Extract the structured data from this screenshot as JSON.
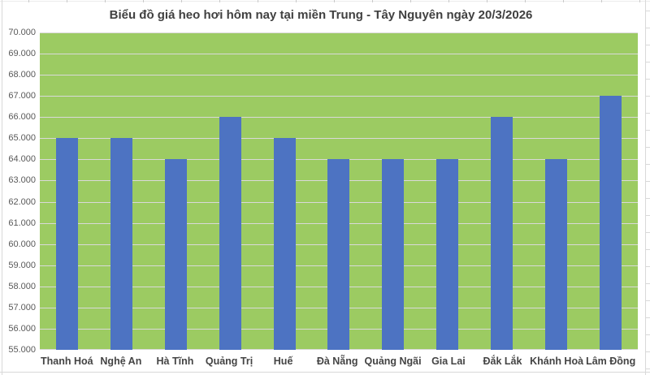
{
  "colors": {
    "plot_background": "#9ccb62",
    "bar": "#4d73c2",
    "gridline": "#d9d9d9",
    "y_label": "#595959",
    "x_label": "#444444",
    "title": "#404040",
    "sheet_line": "#d9d9d9"
  },
  "chart_data": {
    "type": "bar",
    "title": "Biểu đồ giá heo hơi hôm nay tại miền Trung - Tây Nguyên ngày 20/3/2026",
    "categories": [
      "Thanh Hoá",
      "Nghệ An",
      "Hà Tĩnh",
      "Quảng Trị",
      "Huế",
      "Đà Nẵng",
      "Quảng Ngãi",
      "Gia Lai",
      "Đắk Lắk",
      "Khánh Hoà",
      "Lâm Đồng"
    ],
    "values": [
      65000,
      65000,
      64000,
      66000,
      65000,
      64000,
      64000,
      64000,
      66000,
      64000,
      67000
    ],
    "xlabel": "",
    "ylabel": "",
    "ylim": [
      55000,
      70000
    ],
    "y_tick_step": 1000,
    "y_tick_labels": [
      "70.000",
      "69.000",
      "68.000",
      "67.000",
      "66.000",
      "65.000",
      "64.000",
      "63.000",
      "62.000",
      "61.000",
      "60.000",
      "59.000",
      "58.000",
      "57.000",
      "56.000",
      "55.000"
    ],
    "grid": true,
    "legend": false,
    "plot_area_background": "green",
    "series_name": ""
  }
}
